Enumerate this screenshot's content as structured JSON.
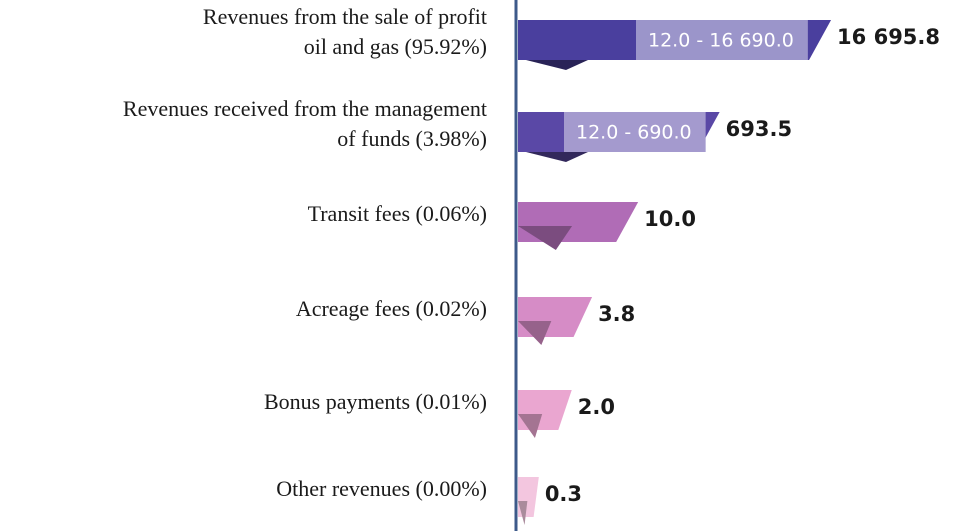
{
  "chart_data": {
    "type": "bar",
    "orientation": "horizontal",
    "categories": [
      [
        "Revenues from the sale of profit",
        "oil and gas (95.92%)"
      ],
      [
        "Revenues received from the management",
        "of funds (3.98%)"
      ],
      [
        "Transit fees (0.06%)"
      ],
      [
        "Acreage fees (0.02%)"
      ],
      [
        "Bonus payments (0.01%)"
      ],
      [
        "Other revenues (0.00%)"
      ]
    ],
    "values": [
      16695.8,
      693.5,
      10.0,
      3.8,
      2.0,
      0.3
    ],
    "value_labels": [
      "16 695.8",
      "693.5",
      "10.0",
      "3.8",
      "2.0",
      "0.3"
    ],
    "colors": [
      "#4a3f9e",
      "#5a48a6",
      "#b06cb6",
      "#d68cc6",
      "#eaa6d0",
      "#f3c6df"
    ],
    "axis_breaks": [
      {
        "bar": 0,
        "from": 12.0,
        "to": 16690.0,
        "label": "12.0 - 16 690.0"
      },
      {
        "bar": 1,
        "from": 12.0,
        "to": 690.0,
        "label": "12.0 - 690.0"
      }
    ]
  }
}
